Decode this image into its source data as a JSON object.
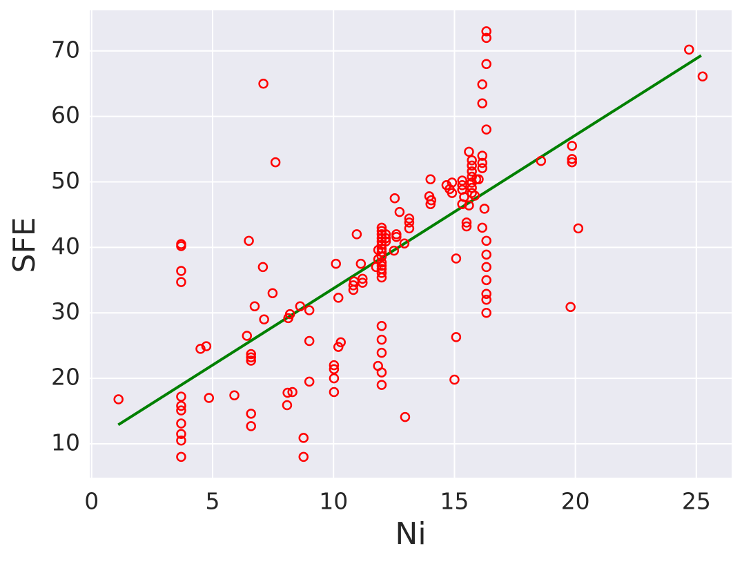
{
  "chart_data": {
    "type": "scatter",
    "xlabel": "Ni",
    "ylabel": "SFE",
    "xlim": [
      -0.08,
      26.46
    ],
    "ylim": [
      4.83,
      76.2
    ],
    "xticks": [
      0,
      5,
      10,
      15,
      20,
      25
    ],
    "yticks": [
      10,
      20,
      30,
      40,
      50,
      60,
      70
    ],
    "grid": true,
    "background": "#eaeaf2",
    "series": [
      {
        "color": "#ff0000",
        "x": [
          1.11,
          3.7,
          3.7,
          3.7,
          3.7,
          3.7,
          3.7,
          3.7,
          3.7,
          3.7,
          3.7,
          3.7,
          4.5,
          4.74,
          4.85,
          5.9,
          6.42,
          6.5,
          6.59,
          6.59,
          6.59,
          6.59,
          6.59,
          6.74,
          7.1,
          7.08,
          7.13,
          7.48,
          7.6,
          8.08,
          8.1,
          8.3,
          8.13,
          8.2,
          8.62,
          8.76,
          8.76,
          9.0,
          9.0,
          9.0,
          10.02,
          10.02,
          10.02,
          10.02,
          10.1,
          10.2,
          10.2,
          10.3,
          10.82,
          10.82,
          10.85,
          10.96,
          11.13,
          11.2,
          11.2,
          11.99,
          11.99,
          11.99,
          11.99,
          11.99,
          11.99,
          11.99,
          11.99,
          11.99,
          11.99,
          11.99,
          11.99,
          11.99,
          11.99,
          11.85,
          11.85,
          11.76,
          12.16,
          12.16,
          12.16,
          11.99,
          11.99,
          11.99,
          11.99,
          11.99,
          11.84,
          12.53,
          12.5,
          12.6,
          12.6,
          12.73,
          12.93,
          12.96,
          13.13,
          13.13,
          13.13,
          14.01,
          13.96,
          14.04,
          14.01,
          14.67,
          14.8,
          14.9,
          14.9,
          15.07,
          15.07,
          15.0,
          15.32,
          15.32,
          15.32,
          15.4,
          15.32,
          15.5,
          15.5,
          15.6,
          15.6,
          15.72,
          15.72,
          15.72,
          15.72,
          15.72,
          15.72,
          15.72,
          15.84,
          15.9,
          16.0,
          16.15,
          16.15,
          16.15,
          16.15,
          16.15,
          16.24,
          16.15,
          16.32,
          16.32,
          16.32,
          16.32,
          16.32,
          16.32,
          16.32,
          16.32,
          16.32,
          16.32,
          16.32,
          18.58,
          19.86,
          19.86,
          19.86,
          19.8,
          20.12,
          24.7,
          25.26
        ],
        "values": [
          16.8,
          40.2,
          40.5,
          36.4,
          34.7,
          17.2,
          15.8,
          15.1,
          13.1,
          11.5,
          10.5,
          8.0,
          24.5,
          24.9,
          17.0,
          17.4,
          26.5,
          41.0,
          23.7,
          23.2,
          22.7,
          14.6,
          12.7,
          31.0,
          65.0,
          37.0,
          29.0,
          33.0,
          53.0,
          15.9,
          17.8,
          17.9,
          29.2,
          29.8,
          31.0,
          10.9,
          8.0,
          30.4,
          25.7,
          19.5,
          22.0,
          21.4,
          20.0,
          17.9,
          37.5,
          32.3,
          24.8,
          25.5,
          33.5,
          34.2,
          34.8,
          42.0,
          37.5,
          34.6,
          35.2,
          43.0,
          42.5,
          42.0,
          41.4,
          40.9,
          40.4,
          39.8,
          39.3,
          38.6,
          37.7,
          37.2,
          36.7,
          36.1,
          35.4,
          39.6,
          38.2,
          37.0,
          42.0,
          41.4,
          40.9,
          28.0,
          25.9,
          23.9,
          20.9,
          19.0,
          21.9,
          47.5,
          39.5,
          42.0,
          41.6,
          45.4,
          40.6,
          14.1,
          44.4,
          43.8,
          42.9,
          50.4,
          47.8,
          47.2,
          46.6,
          49.5,
          48.9,
          48.3,
          49.9,
          38.3,
          26.3,
          19.8,
          50.2,
          49.5,
          48.8,
          47.7,
          46.6,
          43.8,
          43.2,
          46.4,
          54.6,
          53.3,
          52.5,
          51.6,
          50.8,
          49.9,
          49.1,
          48.3,
          47.9,
          50.4,
          50.4,
          64.9,
          62.0,
          54.0,
          52.9,
          52.1,
          45.9,
          43.0,
          73.0,
          72.0,
          68.0,
          58.0,
          41.0,
          38.9,
          37.0,
          35.0,
          32.9,
          32.0,
          30.0,
          53.2,
          55.5,
          53.5,
          53.0,
          30.9,
          42.9,
          70.2,
          66.1
        ]
      }
    ],
    "fit_line": {
      "color": "#008000",
      "x": [
        1.1,
        25.2
      ],
      "values": [
        12.9,
        69.3
      ]
    }
  }
}
